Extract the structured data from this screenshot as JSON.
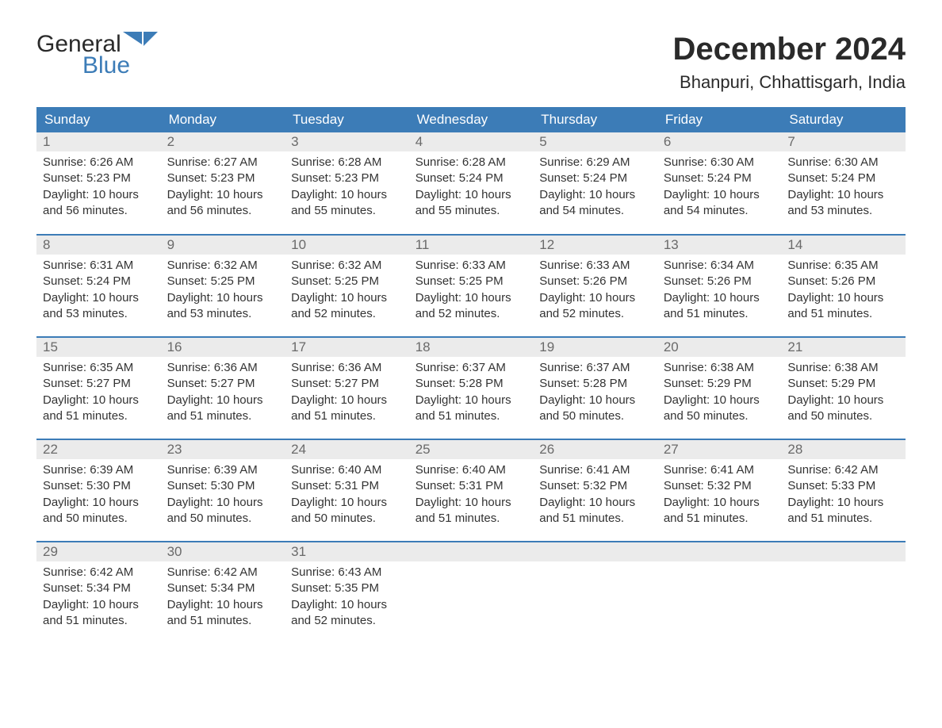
{
  "brand": {
    "name_top": "General",
    "name_bottom": "Blue",
    "text_color": "#2a2a2a",
    "accent_color": "#3c7cb7"
  },
  "title": "December 2024",
  "location": "Bhanpuri, Chhattisgarh, India",
  "colors": {
    "header_bg": "#3c7cb7",
    "header_text": "#ffffff",
    "daynum_bg": "#ebebeb",
    "daynum_text": "#6a6a6a",
    "body_text": "#333333",
    "page_bg": "#ffffff"
  },
  "typography": {
    "title_fontsize": 40,
    "location_fontsize": 22,
    "header_fontsize": 17,
    "body_fontsize": 15
  },
  "calendar": {
    "type": "table",
    "columns": [
      "Sunday",
      "Monday",
      "Tuesday",
      "Wednesday",
      "Thursday",
      "Friday",
      "Saturday"
    ],
    "weeks": [
      [
        {
          "day": "1",
          "sunrise": "6:26 AM",
          "sunset": "5:23 PM",
          "daylight": "10 hours and 56 minutes."
        },
        {
          "day": "2",
          "sunrise": "6:27 AM",
          "sunset": "5:23 PM",
          "daylight": "10 hours and 56 minutes."
        },
        {
          "day": "3",
          "sunrise": "6:28 AM",
          "sunset": "5:23 PM",
          "daylight": "10 hours and 55 minutes."
        },
        {
          "day": "4",
          "sunrise": "6:28 AM",
          "sunset": "5:24 PM",
          "daylight": "10 hours and 55 minutes."
        },
        {
          "day": "5",
          "sunrise": "6:29 AM",
          "sunset": "5:24 PM",
          "daylight": "10 hours and 54 minutes."
        },
        {
          "day": "6",
          "sunrise": "6:30 AM",
          "sunset": "5:24 PM",
          "daylight": "10 hours and 54 minutes."
        },
        {
          "day": "7",
          "sunrise": "6:30 AM",
          "sunset": "5:24 PM",
          "daylight": "10 hours and 53 minutes."
        }
      ],
      [
        {
          "day": "8",
          "sunrise": "6:31 AM",
          "sunset": "5:24 PM",
          "daylight": "10 hours and 53 minutes."
        },
        {
          "day": "9",
          "sunrise": "6:32 AM",
          "sunset": "5:25 PM",
          "daylight": "10 hours and 53 minutes."
        },
        {
          "day": "10",
          "sunrise": "6:32 AM",
          "sunset": "5:25 PM",
          "daylight": "10 hours and 52 minutes."
        },
        {
          "day": "11",
          "sunrise": "6:33 AM",
          "sunset": "5:25 PM",
          "daylight": "10 hours and 52 minutes."
        },
        {
          "day": "12",
          "sunrise": "6:33 AM",
          "sunset": "5:26 PM",
          "daylight": "10 hours and 52 minutes."
        },
        {
          "day": "13",
          "sunrise": "6:34 AM",
          "sunset": "5:26 PM",
          "daylight": "10 hours and 51 minutes."
        },
        {
          "day": "14",
          "sunrise": "6:35 AM",
          "sunset": "5:26 PM",
          "daylight": "10 hours and 51 minutes."
        }
      ],
      [
        {
          "day": "15",
          "sunrise": "6:35 AM",
          "sunset": "5:27 PM",
          "daylight": "10 hours and 51 minutes."
        },
        {
          "day": "16",
          "sunrise": "6:36 AM",
          "sunset": "5:27 PM",
          "daylight": "10 hours and 51 minutes."
        },
        {
          "day": "17",
          "sunrise": "6:36 AM",
          "sunset": "5:27 PM",
          "daylight": "10 hours and 51 minutes."
        },
        {
          "day": "18",
          "sunrise": "6:37 AM",
          "sunset": "5:28 PM",
          "daylight": "10 hours and 51 minutes."
        },
        {
          "day": "19",
          "sunrise": "6:37 AM",
          "sunset": "5:28 PM",
          "daylight": "10 hours and 50 minutes."
        },
        {
          "day": "20",
          "sunrise": "6:38 AM",
          "sunset": "5:29 PM",
          "daylight": "10 hours and 50 minutes."
        },
        {
          "day": "21",
          "sunrise": "6:38 AM",
          "sunset": "5:29 PM",
          "daylight": "10 hours and 50 minutes."
        }
      ],
      [
        {
          "day": "22",
          "sunrise": "6:39 AM",
          "sunset": "5:30 PM",
          "daylight": "10 hours and 50 minutes."
        },
        {
          "day": "23",
          "sunrise": "6:39 AM",
          "sunset": "5:30 PM",
          "daylight": "10 hours and 50 minutes."
        },
        {
          "day": "24",
          "sunrise": "6:40 AM",
          "sunset": "5:31 PM",
          "daylight": "10 hours and 50 minutes."
        },
        {
          "day": "25",
          "sunrise": "6:40 AM",
          "sunset": "5:31 PM",
          "daylight": "10 hours and 51 minutes."
        },
        {
          "day": "26",
          "sunrise": "6:41 AM",
          "sunset": "5:32 PM",
          "daylight": "10 hours and 51 minutes."
        },
        {
          "day": "27",
          "sunrise": "6:41 AM",
          "sunset": "5:32 PM",
          "daylight": "10 hours and 51 minutes."
        },
        {
          "day": "28",
          "sunrise": "6:42 AM",
          "sunset": "5:33 PM",
          "daylight": "10 hours and 51 minutes."
        }
      ],
      [
        {
          "day": "29",
          "sunrise": "6:42 AM",
          "sunset": "5:34 PM",
          "daylight": "10 hours and 51 minutes."
        },
        {
          "day": "30",
          "sunrise": "6:42 AM",
          "sunset": "5:34 PM",
          "daylight": "10 hours and 51 minutes."
        },
        {
          "day": "31",
          "sunrise": "6:43 AM",
          "sunset": "5:35 PM",
          "daylight": "10 hours and 52 minutes."
        },
        null,
        null,
        null,
        null
      ]
    ]
  },
  "labels": {
    "sunrise": "Sunrise:",
    "sunset": "Sunset:",
    "daylight": "Daylight:"
  }
}
